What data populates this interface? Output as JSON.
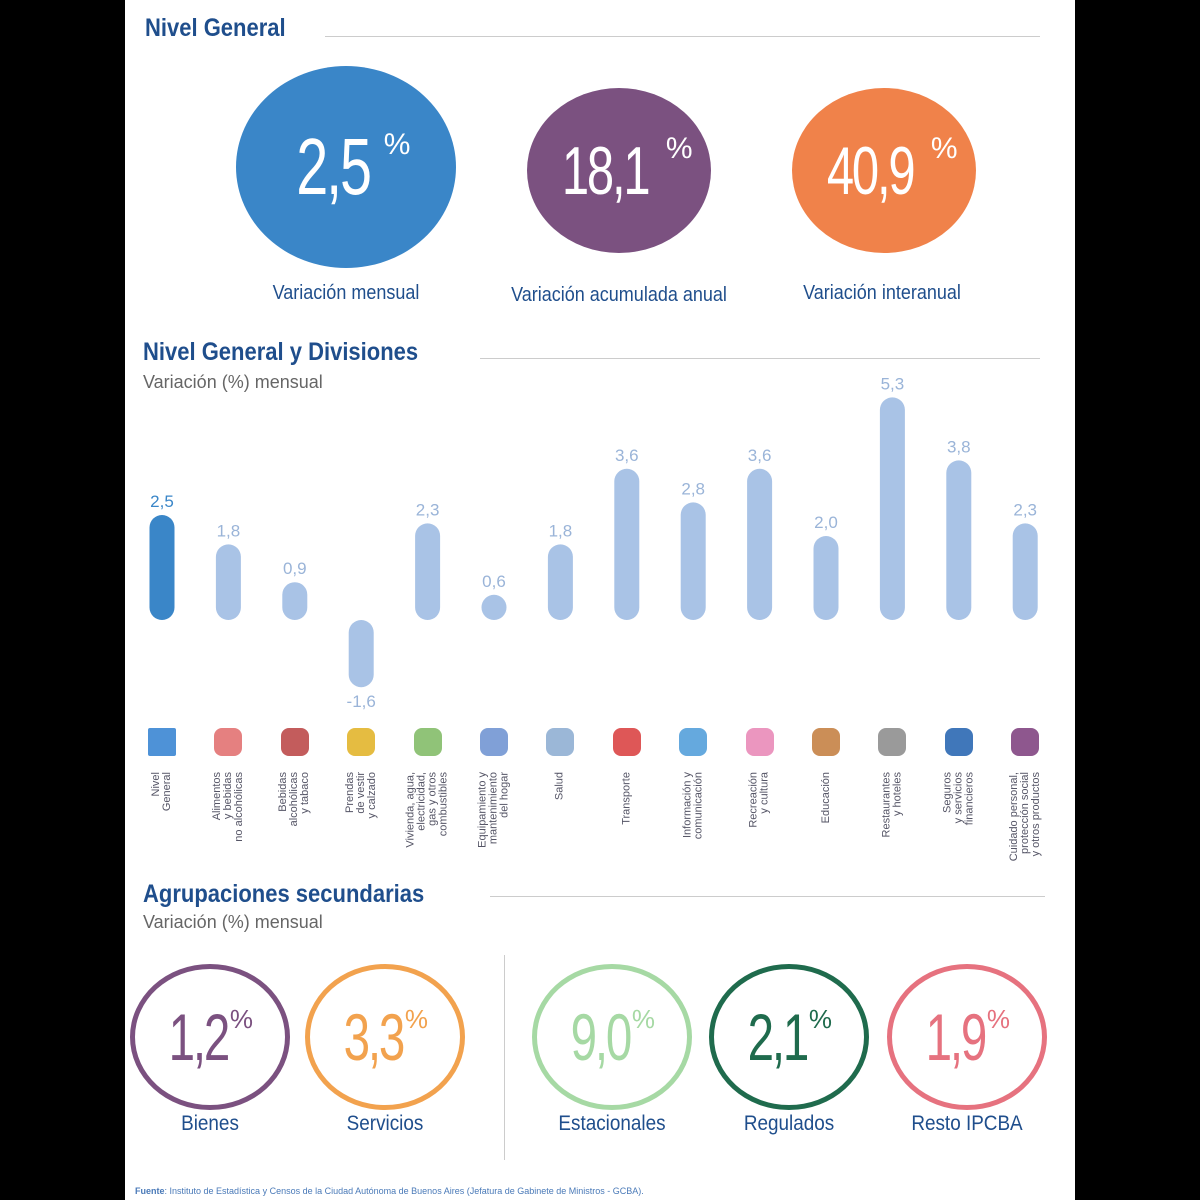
{
  "nivel_general": {
    "title": "Nivel General",
    "cards": [
      {
        "value": "2,5",
        "unit": "%",
        "label": "Variación mensual",
        "color": "#3a86c8"
      },
      {
        "value": "18,1",
        "unit": "%",
        "label": "Variación acumulada anual",
        "color": "#7b5180"
      },
      {
        "value": "40,9",
        "unit": "%",
        "label": "Variación interanual",
        "color": "#f0824a"
      }
    ]
  },
  "divisiones": {
    "title": "Nivel General y Divisiones",
    "subtitle": "Variación (%) mensual"
  },
  "chart_data": {
    "type": "bar",
    "title": "Nivel General y Divisiones",
    "ylabel": "Variación (%) mensual",
    "categories": [
      "Nivel\nGeneral",
      "Alimentos\ny bebidas\nno alcohólicas",
      "Bebidas\nalcohólicas\ny tabaco",
      "Prendas\nde vestir\ny calzado",
      "Vivienda, agua,\nelectricidad,\ngas y otros\ncombustibles",
      "Equipamiento y\nmantenimiento\ndel hogar",
      "Salud",
      "Transporte",
      "Información y\ncomunicación",
      "Recreación\ny cultura",
      "Educación",
      "Restaurantes\ny hoteles",
      "Seguros\ny servicios\nfinancieros",
      "Cuidado personal,\nprotección social\ny otros productos"
    ],
    "values": [
      2.5,
      1.8,
      0.9,
      -1.6,
      2.3,
      0.6,
      1.8,
      3.6,
      2.8,
      3.6,
      2.0,
      5.3,
      3.8,
      2.3
    ],
    "data_labels": [
      "2,5",
      "1,8",
      "0,9",
      "-1,6",
      "2,3",
      "0,6",
      "1,8",
      "3,6",
      "2,8",
      "3,6",
      "2,0",
      "5,3",
      "3,8",
      "2,3"
    ],
    "icons": [
      "ipcba-logo-icon",
      "food-icon",
      "bottles-icon",
      "jacket-icon",
      "house-icon",
      "washer-icon",
      "doctor-icon",
      "transport-icon",
      "computer-icon",
      "theater-masks-icon",
      "school-icon",
      "cutlery-icon",
      "bank-icon",
      "cosmetics-icon"
    ],
    "colors": {
      "highlight": "#3a86c8",
      "bars": "#a9c3e6",
      "labels": "#9ab4d8"
    }
  },
  "agrupaciones": {
    "title": "Agrupaciones secundarias",
    "subtitle": "Variación (%) mensual",
    "items": [
      {
        "value": "1,2",
        "unit": "%",
        "label": "Bienes",
        "color": "#7b5180"
      },
      {
        "value": "3,3",
        "unit": "%",
        "label": "Servicios",
        "color": "#f2a24e"
      },
      {
        "value": "9,0",
        "unit": "%",
        "label": "Estacionales",
        "color": "#a6d9a4"
      },
      {
        "value": "2,1",
        "unit": "%",
        "label": "Regulados",
        "color": "#1f6b4d"
      },
      {
        "value": "1,9",
        "unit": "%",
        "label": "Resto IPCBA",
        "color": "#e6727f"
      }
    ]
  },
  "footer": {
    "label": "Fuente",
    "text": ": Instituto de Estadística y Censos de la Ciudad Autónoma de Buenos Aires (Jefatura de Gabinete de Ministros - GCBA)."
  }
}
